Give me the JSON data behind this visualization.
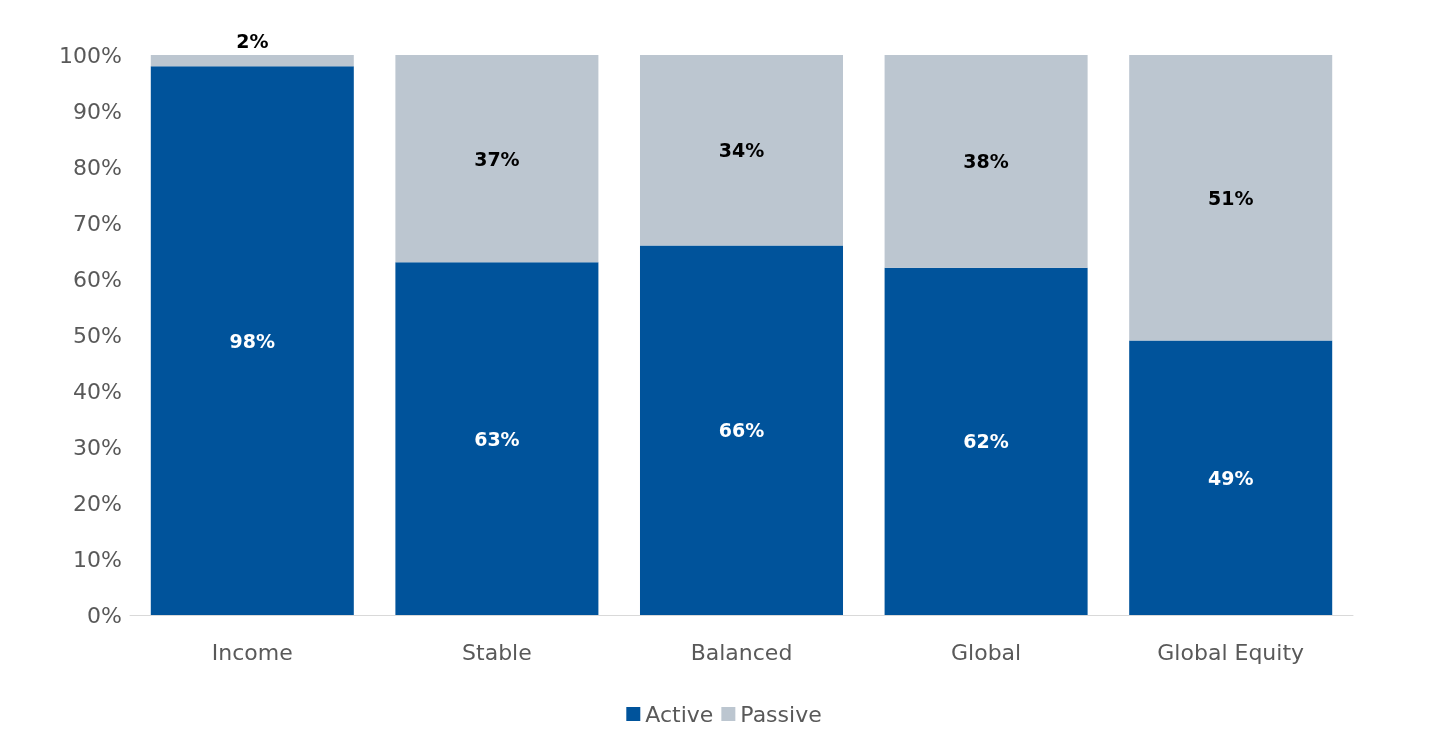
{
  "chart_data": {
    "type": "bar",
    "stacked": true,
    "categories": [
      "Income",
      "Stable",
      "Balanced",
      "Global",
      "Global Equity"
    ],
    "series": [
      {
        "name": "Active",
        "color": "#00539b",
        "values": [
          98,
          63,
          66,
          62,
          49
        ],
        "value_labels": [
          "98%",
          "63%",
          "66%",
          "62%",
          "49%"
        ]
      },
      {
        "name": "Passive",
        "color": "#bcc6d0",
        "values": [
          2,
          37,
          34,
          38,
          51
        ],
        "value_labels": [
          "2%",
          "37%",
          "34%",
          "38%",
          "51%"
        ]
      }
    ],
    "ylim": [
      0,
      100
    ],
    "yticks": [
      {
        "value": 0,
        "label": "0%"
      },
      {
        "value": 10,
        "label": "10%"
      },
      {
        "value": 20,
        "label": "20%"
      },
      {
        "value": 30,
        "label": "30%"
      },
      {
        "value": 40,
        "label": "40%"
      },
      {
        "value": 50,
        "label": "50%"
      },
      {
        "value": 60,
        "label": "60%"
      },
      {
        "value": 70,
        "label": "70%"
      },
      {
        "value": 80,
        "label": "80%"
      },
      {
        "value": 90,
        "label": "90%"
      },
      {
        "value": 100,
        "label": "100%"
      }
    ],
    "grid": false,
    "legend": "bottom"
  }
}
